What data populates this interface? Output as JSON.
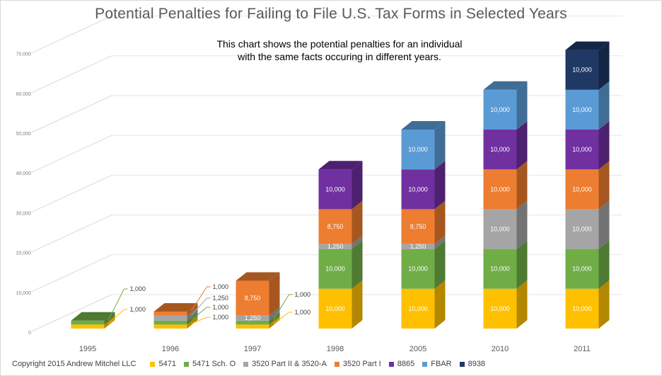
{
  "chart_data": {
    "type": "bar",
    "subtype": "3d-stacked-column",
    "title": "Potential Penalties for Failing to File U.S. Tax Forms in Selected Years",
    "annotation": [
      "This chart shows the potential penalties for an individual",
      "with the same facts occuring in different years."
    ],
    "xlabel": "",
    "ylabel": "",
    "ylim": [
      0,
      70000
    ],
    "yticks": [
      0,
      10000,
      20000,
      30000,
      40000,
      50000,
      60000,
      70000
    ],
    "ytick_labels": [
      "0",
      "10,000",
      "20,000",
      "30,000",
      "40,000",
      "50,000",
      "60,000",
      "70,000"
    ],
    "grid": true,
    "legend_position": "bottom",
    "categories": [
      "1995",
      "1996",
      "1997",
      "1998",
      "2005",
      "2010",
      "2011"
    ],
    "series": [
      {
        "name": "5471",
        "color": "#FFC000",
        "side": "#B38700",
        "values": [
          1000,
          1000,
          1000,
          10000,
          10000,
          10000,
          10000
        ]
      },
      {
        "name": "5471 Sch. O",
        "color": "#70AD47",
        "side": "#4E7A32",
        "values": [
          1000,
          1000,
          1000,
          10000,
          10000,
          10000,
          10000
        ]
      },
      {
        "name": "3520 Part II & 3520-A",
        "color": "#A5A5A5",
        "side": "#737373",
        "values": [
          0,
          1250,
          1250,
          1250,
          1250,
          10000,
          10000
        ]
      },
      {
        "name": "3520 Part I",
        "color": "#ED7D31",
        "side": "#A6571F",
        "values": [
          0,
          1000,
          8750,
          8750,
          8750,
          10000,
          10000
        ]
      },
      {
        "name": "8865",
        "color": "#7030A0",
        "side": "#4E2070",
        "values": [
          0,
          0,
          0,
          10000,
          10000,
          10000,
          10000
        ]
      },
      {
        "name": "FBAR",
        "color": "#5B9BD5",
        "side": "#3F6D96",
        "values": [
          0,
          0,
          0,
          0,
          10000,
          10000,
          10000
        ]
      },
      {
        "name": "8938",
        "color": "#203864",
        "side": "#152545",
        "values": [
          0,
          0,
          0,
          0,
          0,
          0,
          10000
        ]
      }
    ],
    "data_labels": [
      {
        "category": "1995",
        "labels": [
          "1,000",
          "1,000"
        ],
        "callout": true
      },
      {
        "category": "1996",
        "labels": [
          "1,000",
          "1,000",
          "1,250",
          "1,000"
        ],
        "callout": true
      },
      {
        "category": "1997",
        "labels": [
          "1,000",
          "1,000",
          "1,250",
          "8,750"
        ],
        "callout": "partial"
      },
      {
        "category": "1998",
        "labels": [
          "10,000",
          "10,000",
          "1,250",
          "8,750",
          "10,000"
        ]
      },
      {
        "category": "2005",
        "labels": [
          "10,000",
          "10,000",
          "1,250",
          "8,750",
          "10,000",
          "10,000"
        ]
      },
      {
        "category": "2010",
        "labels": [
          "10,000",
          "10,000",
          "10,000",
          "10,000",
          "10,000",
          "10,000"
        ]
      },
      {
        "category": "2011",
        "labels": [
          "10,000",
          "10,000",
          "10,000",
          "10,000",
          "10,000",
          "10,000",
          "10,000"
        ]
      }
    ]
  },
  "footer": {
    "copyright": "Copyright 2015 Andrew Mitchel LLC"
  }
}
